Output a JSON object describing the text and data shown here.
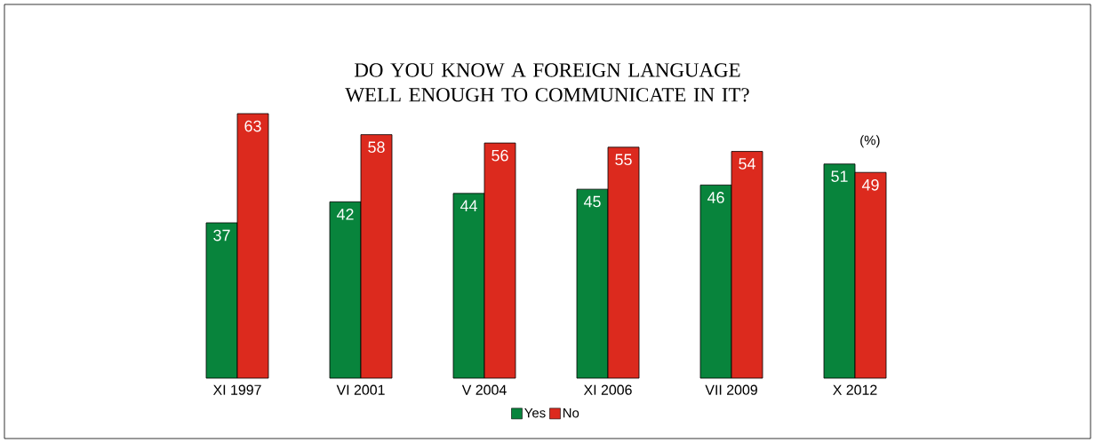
{
  "chart_data": {
    "type": "bar",
    "title": "DO YOU KNOW A FOREIGN LANGUAGE WELL ENOUGH TO COMMUNICATE IN IT?",
    "categories": [
      "XI 1997",
      "VI 2001",
      "V 2004",
      "XI 2006",
      "VII 2009",
      "X 2012"
    ],
    "series": [
      {
        "name": "Yes",
        "color": "#08843c",
        "values": [
          37,
          42,
          44,
          45,
          46,
          51
        ]
      },
      {
        "name": "No",
        "color": "#dc2a1e",
        "values": [
          63,
          58,
          56,
          55,
          54,
          49
        ]
      }
    ],
    "annotations": [
      "(%)"
    ],
    "data_labels": true,
    "legend": "bottom"
  }
}
